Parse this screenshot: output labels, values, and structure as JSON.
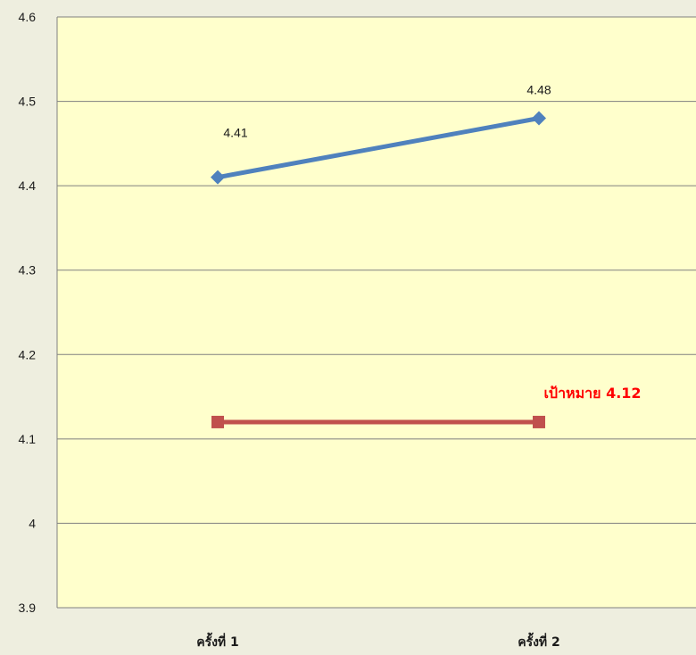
{
  "chart_data": {
    "type": "line",
    "categories": [
      "ครั้งที่ 1",
      "ครั้งที่ 2"
    ],
    "ylim": [
      3.9,
      4.6
    ],
    "yticks": [
      "3.9",
      "4",
      "4.1",
      "4.2",
      "4.3",
      "4.4",
      "4.5",
      "4.6"
    ],
    "grid": true,
    "series": [
      {
        "values": [
          4.41,
          4.48
        ],
        "data_labels": [
          "4.41",
          "4.48"
        ],
        "color": "#4f81bd",
        "marker": "diamond"
      },
      {
        "values": [
          4.12,
          4.12
        ],
        "color": "#c0504d",
        "marker": "square",
        "annotation": "เป้าหมาย 4.12",
        "annotation_color": "#ff0000"
      }
    ],
    "plot_background": "#ffffcc",
    "page_background": "#eeeedf"
  }
}
